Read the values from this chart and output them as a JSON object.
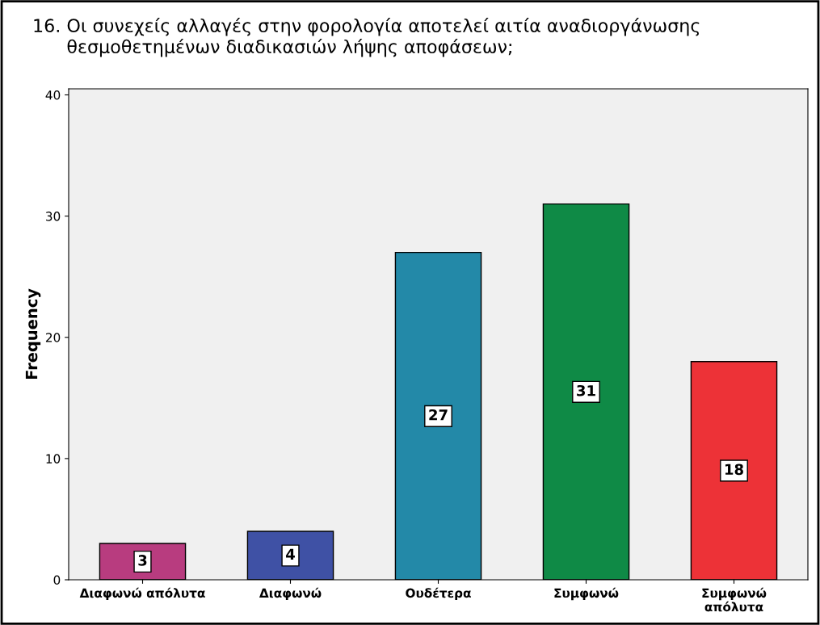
{
  "chart_data": {
    "type": "bar",
    "title": "16. Οι συνεχείς αλλαγές στην φορολογία αποτελεί αιτία αναδιοργάνωσης\n      θεσμοθετημένων διαδικασιών λήψης αποφάσεων;",
    "ylabel": "Frequency",
    "categories": [
      "Διαφωνώ απόλυτα",
      "Διαφωνώ",
      "Ουδέτερα",
      "Συμφωνώ",
      "Συμφωνώ\nαπόλυτα"
    ],
    "values": [
      3,
      4,
      27,
      31,
      18
    ],
    "colors": [
      "#b83c7f",
      "#3f51a5",
      "#2389a8",
      "#0f8a46",
      "#ed3237"
    ],
    "ylim": [
      0,
      40.5
    ],
    "yticks": [
      0,
      10,
      20,
      30,
      40
    ],
    "data_labels": true,
    "grid": false,
    "legend": false
  }
}
